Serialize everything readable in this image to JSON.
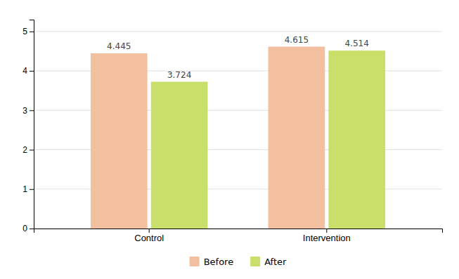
{
  "chart_data": {
    "type": "bar",
    "categories": [
      "Control",
      "Intervention"
    ],
    "series": [
      {
        "name": "Before",
        "color": "#F2C09E",
        "values": [
          4.445,
          4.615
        ]
      },
      {
        "name": "After",
        "color": "#C8E06A",
        "values": [
          3.724,
          4.514
        ]
      }
    ],
    "ylim": [
      0,
      5.3
    ],
    "yticks": [
      0,
      1,
      2,
      3,
      4,
      5
    ],
    "grid": true,
    "legend": "bottom",
    "data_labels": true
  }
}
